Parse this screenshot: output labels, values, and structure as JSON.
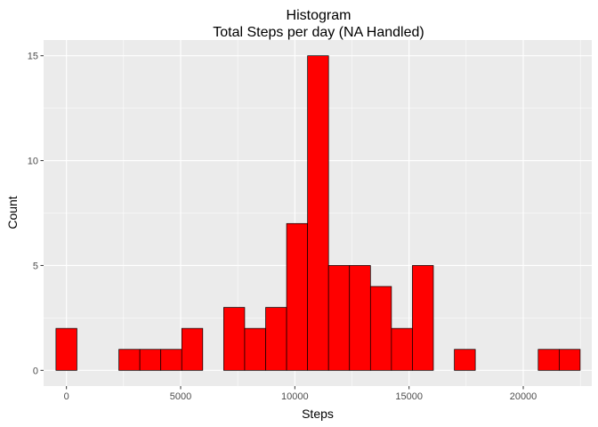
{
  "chart_data": {
    "type": "bar",
    "title": "Histogram",
    "subtitle": "Total Steps per day (NA Handled)",
    "xlabel": "Steps",
    "ylabel": "Count",
    "xlim": [
      -1000,
      23000
    ],
    "ylim": [
      -0.75,
      15.75
    ],
    "xticks": [
      0,
      5000,
      10000,
      15000,
      20000
    ],
    "xtick_labels": [
      "0",
      "5000",
      "10000",
      "15000",
      "20000"
    ],
    "yticks": [
      0,
      5,
      10,
      15
    ],
    "ytick_labels": [
      "0",
      "5",
      "10",
      "15"
    ],
    "bin_width": 918,
    "bins": [
      {
        "x0": -459,
        "x1": 459,
        "count": 2
      },
      {
        "x0": 459,
        "x1": 1377,
        "count": 0
      },
      {
        "x0": 1377,
        "x1": 2295,
        "count": 0
      },
      {
        "x0": 2295,
        "x1": 3213,
        "count": 1
      },
      {
        "x0": 3213,
        "x1": 4131,
        "count": 1
      },
      {
        "x0": 4131,
        "x1": 5049,
        "count": 1
      },
      {
        "x0": 5049,
        "x1": 5967,
        "count": 2
      },
      {
        "x0": 5967,
        "x1": 6885,
        "count": 0
      },
      {
        "x0": 6885,
        "x1": 7803,
        "count": 3
      },
      {
        "x0": 7803,
        "x1": 8721,
        "count": 2
      },
      {
        "x0": 8721,
        "x1": 9639,
        "count": 3
      },
      {
        "x0": 9639,
        "x1": 10557,
        "count": 7
      },
      {
        "x0": 10557,
        "x1": 11475,
        "count": 15
      },
      {
        "x0": 11475,
        "x1": 12393,
        "count": 5
      },
      {
        "x0": 12393,
        "x1": 13311,
        "count": 5
      },
      {
        "x0": 13311,
        "x1": 14229,
        "count": 4
      },
      {
        "x0": 14229,
        "x1": 15147,
        "count": 2
      },
      {
        "x0": 15147,
        "x1": 16065,
        "count": 5
      },
      {
        "x0": 16065,
        "x1": 16983,
        "count": 0
      },
      {
        "x0": 16983,
        "x1": 17901,
        "count": 1
      },
      {
        "x0": 17901,
        "x1": 18819,
        "count": 0
      },
      {
        "x0": 18819,
        "x1": 19737,
        "count": 0
      },
      {
        "x0": 19737,
        "x1": 20655,
        "count": 0
      },
      {
        "x0": 20655,
        "x1": 21573,
        "count": 1
      },
      {
        "x0": 21573,
        "x1": 22491,
        "count": 1
      }
    ],
    "colors": {
      "fill": "#ff0000",
      "outline": "#000000",
      "panel_background": "#ebebeb",
      "gridline": "#ffffff"
    },
    "grid": true,
    "legend": "none"
  }
}
